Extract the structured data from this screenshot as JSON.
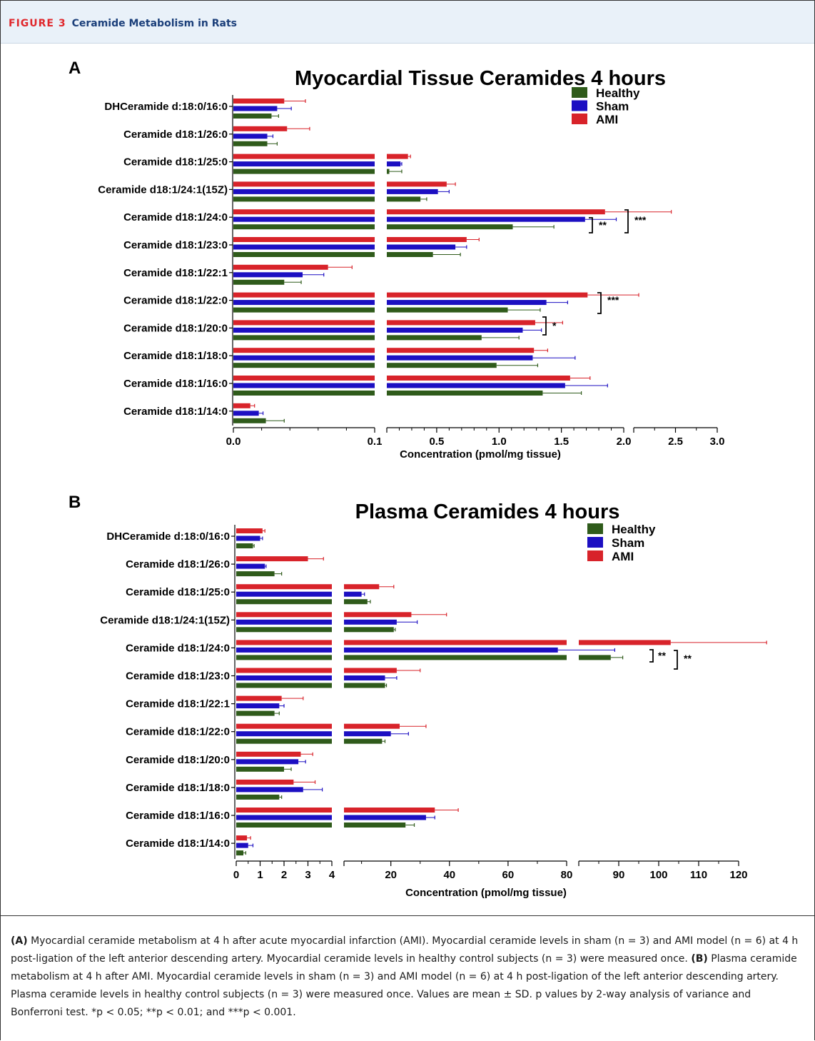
{
  "header": {
    "figure_label": "FIGURE 3",
    "title": "Ceramide Metabolism in Rats"
  },
  "colors": {
    "healthy": "#2f5b1b",
    "sham": "#1c0fc2",
    "ami": "#d8232a"
  },
  "legend_labels": [
    "Healthy",
    "Sham",
    "AMI"
  ],
  "caption": {
    "a_label": "(A)",
    "a_text": " Myocardial ceramide metabolism at 4 h after acute myocardial infarction (AMI). Myocardial ceramide levels in sham (n = 3) and AMI model (n = 6) at 4 h post-ligation of the left anterior descending artery. Myocardial ceramide levels in healthy control subjects (n = 3) were measured once. ",
    "b_label": "(B)",
    "b_text": " Plasma ceramide metabolism at 4 h after AMI. Myocardial ceramide levels in sham (n = 3) and AMI model (n = 6) at 4 h post-ligation of the left anterior descending artery. Plasma ceramide levels in healthy control subjects (n = 3) were measured once. Values are mean ± SD. p values by 2-way analysis of variance and Bonferroni test. *p < 0.05; **p < 0.01; and ***p < 0.001."
  },
  "chart_data": [
    {
      "type": "bar",
      "panel": "A",
      "title": "Myocardial Tissue Ceramides 4 hours",
      "xlabel": "Concentration (pmol/mg tissue)",
      "orientation": "horizontal",
      "legend_position": "top-right",
      "axis_segments": [
        [
          0,
          0.1
        ],
        [
          0.1,
          2.0
        ],
        [
          2.0,
          3.0
        ]
      ],
      "tick_labels": [
        "0.0",
        "0.1",
        "0.5",
        "1.0",
        "1.5",
        "2.0",
        "2.5",
        "3.0"
      ],
      "categories": [
        "DHCeramide d:18:0/16:0",
        "Ceramide d18:1/26:0",
        "Ceramide d18:1/25:0",
        "Ceramide d18:1/24:1(15Z)",
        "Ceramide d18:1/24:0",
        "Ceramide d18:1/23:0",
        "Ceramide d18:1/22:1",
        "Ceramide d18:1/22:0",
        "Ceramide d18:1/20:0",
        "Ceramide d18:1/18:0",
        "Ceramide d18:1/16:0",
        "Ceramide d18:1/14:0"
      ],
      "series": [
        {
          "name": "AMI",
          "values": [
            0.036,
            0.038,
            0.27,
            0.58,
            1.85,
            0.74,
            0.067,
            1.71,
            1.29,
            1.28,
            1.57,
            0.012
          ],
          "errors": [
            0.015,
            0.016,
            0.02,
            0.07,
            0.6,
            0.1,
            0.017,
            0.35,
            0.22,
            0.11,
            0.16,
            0.003
          ]
        },
        {
          "name": "Sham",
          "values": [
            0.031,
            0.024,
            0.21,
            0.51,
            1.69,
            0.65,
            0.049,
            1.38,
            1.19,
            1.27,
            1.53,
            0.018
          ],
          "errors": [
            0.01,
            0.004,
            0.01,
            0.09,
            0.25,
            0.09,
            0.015,
            0.17,
            0.15,
            0.34,
            0.34,
            0.003
          ]
        },
        {
          "name": "Healthy",
          "values": [
            0.027,
            0.024,
            0.12,
            0.37,
            1.11,
            0.47,
            0.036,
            1.07,
            0.86,
            0.98,
            1.35,
            0.023
          ],
          "errors": [
            0.005,
            0.007,
            0.1,
            0.05,
            0.33,
            0.22,
            0.012,
            0.26,
            0.3,
            0.33,
            0.31,
            0.013
          ]
        }
      ],
      "annotations": [
        {
          "category": "Ceramide d18:1/24:0",
          "label": "**"
        },
        {
          "category": "Ceramide d18:1/24:0",
          "label": "***"
        },
        {
          "category": "Ceramide d18:1/22:0",
          "label": "***"
        },
        {
          "category": "Ceramide d18:1/20:0",
          "label": "*"
        }
      ]
    },
    {
      "type": "bar",
      "panel": "B",
      "title": "Plasma Ceramides 4 hours",
      "xlabel": "Concentration (pmol/mg tissue)",
      "orientation": "horizontal",
      "legend_position": "top-right",
      "axis_segments": [
        [
          0,
          4
        ],
        [
          4,
          80
        ],
        [
          80,
          120
        ]
      ],
      "tick_labels": [
        "0",
        "1",
        "2",
        "3",
        "4",
        "20",
        "40",
        "60",
        "80",
        "90",
        "100",
        "110",
        "120"
      ],
      "categories": [
        "DHCeramide d:18:0/16:0",
        "Ceramide d18:1/26:0",
        "Ceramide d18:1/25:0",
        "Ceramide d18:1/24:1(15Z)",
        "Ceramide d18:1/24:0",
        "Ceramide d18:1/23:0",
        "Ceramide d18:1/22:1",
        "Ceramide d18:1/22:0",
        "Ceramide d18:1/20:0",
        "Ceramide d18:1/18:0",
        "Ceramide d18:1/16:0",
        "Ceramide d18:1/14:0"
      ],
      "series": [
        {
          "name": "AMI",
          "values": [
            1.1,
            3.0,
            16,
            27,
            103,
            22,
            1.9,
            23,
            2.7,
            2.4,
            35,
            0.45
          ],
          "errors": [
            0.1,
            0.65,
            5,
            12,
            24,
            8,
            0.9,
            9,
            0.5,
            0.9,
            8,
            0.15
          ]
        },
        {
          "name": "Sham",
          "values": [
            1.0,
            1.2,
            10,
            22,
            77,
            18,
            1.8,
            20,
            2.6,
            2.8,
            32,
            0.5
          ],
          "errors": [
            0.1,
            0.05,
            1,
            7,
            12,
            4,
            0.2,
            6,
            0.3,
            0.8,
            3,
            0.2
          ]
        },
        {
          "name": "Healthy",
          "values": [
            0.7,
            1.6,
            12,
            21,
            88,
            18,
            1.6,
            17,
            2.0,
            1.8,
            25,
            0.3
          ],
          "errors": [
            0.05,
            0.3,
            1,
            0.5,
            3,
            0.5,
            0.2,
            1,
            0.3,
            0.1,
            3,
            0.1
          ]
        }
      ],
      "annotations": [
        {
          "category": "Ceramide d18:1/24:0",
          "label": "**"
        },
        {
          "category": "Ceramide d18:1/24:0",
          "label": "**"
        }
      ]
    }
  ]
}
